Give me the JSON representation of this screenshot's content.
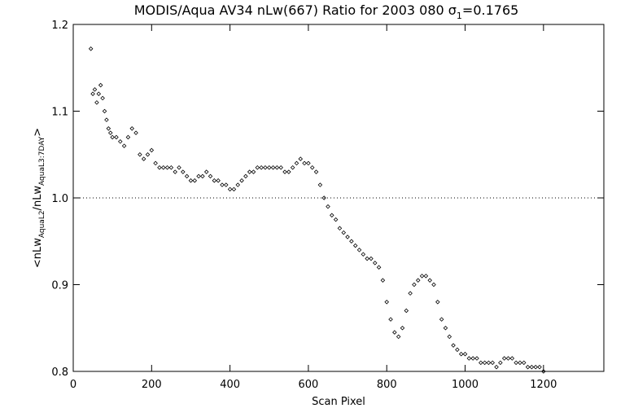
{
  "chart_data": {
    "type": "scatter",
    "title_main": "MODIS/Aqua AV34 nLw(667) Ratio for 2003 080 ",
    "title_sigma": "σ",
    "title_sigma_sub": "1",
    "title_value": "=0.1765",
    "xlabel": "Scan Pixel",
    "ylabel_parts": {
      "open": "<",
      "nlw1": "nLw",
      "sub1": "AquaL2",
      "slash": "/",
      "nlw2": "nLw",
      "sub2": "AquaL3:7DAY",
      "close": ">"
    },
    "xlim": [
      0,
      1354
    ],
    "ylim": [
      0.8,
      1.2
    ],
    "x_ticks": [
      0,
      200,
      400,
      600,
      800,
      1000,
      1200
    ],
    "x_tick_labels": [
      "0",
      "200",
      "400",
      "600",
      "800",
      "1000",
      "1200"
    ],
    "y_ticks": [
      0.8,
      0.9,
      1.0,
      1.1,
      1.2
    ],
    "y_tick_labels": [
      "0.8",
      "0.9",
      "1.0",
      "1.1",
      "1.2"
    ],
    "reference_line": 1.0,
    "marker": "diamond",
    "series": [
      {
        "x": [
          45,
          50,
          55,
          60,
          65,
          70,
          75,
          80,
          85,
          90,
          95,
          100,
          110,
          120,
          130,
          140,
          150,
          160,
          170,
          180,
          190,
          200,
          210,
          220,
          230,
          240,
          250,
          260,
          270,
          280,
          290,
          300,
          310,
          320,
          330,
          340,
          350,
          360,
          370,
          380,
          390,
          400,
          410,
          420,
          430,
          440,
          450,
          460,
          470,
          480,
          490,
          500,
          510,
          520,
          530,
          540,
          550,
          560,
          570,
          580,
          590,
          600,
          610,
          620,
          630,
          640,
          650,
          660,
          670,
          680,
          690,
          700,
          710,
          720,
          730,
          740,
          750,
          760,
          770,
          780,
          790,
          800,
          810,
          820,
          830,
          840,
          850,
          860,
          870,
          880,
          890,
          900,
          910,
          920,
          930,
          940,
          950,
          960,
          970,
          980,
          990,
          1000,
          1010,
          1020,
          1030,
          1040,
          1050,
          1060,
          1070,
          1080,
          1090,
          1100,
          1110,
          1120,
          1130,
          1140,
          1150,
          1160,
          1170,
          1180,
          1190,
          1200
        ],
        "y": [
          1.172,
          1.12,
          1.125,
          1.11,
          1.12,
          1.13,
          1.115,
          1.1,
          1.09,
          1.08,
          1.075,
          1.07,
          1.07,
          1.065,
          1.06,
          1.07,
          1.08,
          1.075,
          1.05,
          1.045,
          1.05,
          1.055,
          1.04,
          1.035,
          1.035,
          1.035,
          1.035,
          1.03,
          1.035,
          1.03,
          1.025,
          1.02,
          1.02,
          1.025,
          1.025,
          1.03,
          1.025,
          1.02,
          1.02,
          1.015,
          1.015,
          1.01,
          1.01,
          1.015,
          1.02,
          1.025,
          1.03,
          1.03,
          1.035,
          1.035,
          1.035,
          1.035,
          1.035,
          1.035,
          1.035,
          1.03,
          1.03,
          1.035,
          1.04,
          1.045,
          1.04,
          1.04,
          1.035,
          1.03,
          1.015,
          1.0,
          0.99,
          0.98,
          0.975,
          0.965,
          0.96,
          0.955,
          0.95,
          0.945,
          0.94,
          0.935,
          0.93,
          0.93,
          0.925,
          0.92,
          0.905,
          0.88,
          0.86,
          0.845,
          0.84,
          0.85,
          0.87,
          0.89,
          0.9,
          0.905,
          0.91,
          0.91,
          0.905,
          0.9,
          0.88,
          0.86,
          0.85,
          0.84,
          0.83,
          0.825,
          0.82,
          0.82,
          0.815,
          0.815,
          0.815,
          0.81,
          0.81,
          0.81,
          0.81,
          0.805,
          0.81,
          0.815,
          0.815,
          0.815,
          0.81,
          0.81,
          0.81,
          0.805,
          0.805,
          0.805,
          0.805,
          0.8
        ]
      }
    ]
  }
}
